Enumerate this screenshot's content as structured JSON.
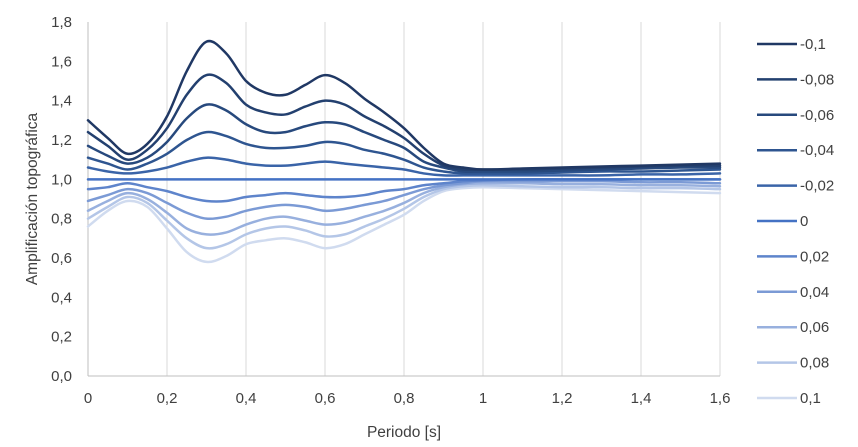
{
  "chart_data": {
    "type": "line",
    "title": "",
    "xlabel": "Periodo [s]",
    "ylabel": "Amplificación topográfica",
    "xlim": [
      0,
      1.6
    ],
    "ylim": [
      0,
      1.8
    ],
    "grid": "vertical",
    "legend_position": "right",
    "x_tick_labels": [
      "0",
      "0,2",
      "0,4",
      "0,6",
      "0,8",
      "1",
      "1,2",
      "1,4",
      "1,6"
    ],
    "y_tick_labels": [
      "0,0",
      "0,2",
      "0,4",
      "0,6",
      "0,8",
      "1,0",
      "1,2",
      "1,4",
      "1,6",
      "1,8"
    ],
    "x": [
      0,
      0.05,
      0.1,
      0.15,
      0.2,
      0.25,
      0.3,
      0.35,
      0.4,
      0.45,
      0.5,
      0.55,
      0.6,
      0.65,
      0.7,
      0.75,
      0.8,
      0.85,
      0.9,
      0.95,
      1.0,
      1.1,
      1.2,
      1.3,
      1.4,
      1.5,
      1.6
    ],
    "series": [
      {
        "name": "-0,1",
        "color": "#203864",
        "values": [
          1.3,
          1.21,
          1.13,
          1.18,
          1.32,
          1.55,
          1.7,
          1.64,
          1.5,
          1.44,
          1.43,
          1.48,
          1.53,
          1.49,
          1.41,
          1.34,
          1.26,
          1.16,
          1.08,
          1.06,
          1.05,
          1.055,
          1.06,
          1.065,
          1.07,
          1.075,
          1.08
        ]
      },
      {
        "name": "-0,08",
        "color": "#23406f",
        "values": [
          1.24,
          1.17,
          1.1,
          1.15,
          1.26,
          1.43,
          1.53,
          1.49,
          1.38,
          1.34,
          1.33,
          1.37,
          1.4,
          1.38,
          1.32,
          1.27,
          1.21,
          1.13,
          1.07,
          1.05,
          1.05,
          1.05,
          1.055,
          1.06,
          1.065,
          1.07,
          1.07
        ]
      },
      {
        "name": "-0,06",
        "color": "#27497d",
        "values": [
          1.17,
          1.12,
          1.08,
          1.11,
          1.19,
          1.31,
          1.38,
          1.35,
          1.28,
          1.24,
          1.24,
          1.27,
          1.29,
          1.28,
          1.24,
          1.2,
          1.16,
          1.09,
          1.06,
          1.04,
          1.04,
          1.04,
          1.045,
          1.05,
          1.055,
          1.06,
          1.06
        ]
      },
      {
        "name": "-0,04",
        "color": "#2e5590",
        "values": [
          1.11,
          1.08,
          1.05,
          1.08,
          1.13,
          1.2,
          1.24,
          1.22,
          1.18,
          1.16,
          1.16,
          1.17,
          1.19,
          1.18,
          1.15,
          1.13,
          1.1,
          1.06,
          1.04,
          1.03,
          1.03,
          1.03,
          1.035,
          1.04,
          1.04,
          1.045,
          1.05
        ]
      },
      {
        "name": "-0,02",
        "color": "#3a64a8",
        "values": [
          1.06,
          1.04,
          1.03,
          1.04,
          1.06,
          1.09,
          1.11,
          1.1,
          1.08,
          1.07,
          1.07,
          1.08,
          1.09,
          1.08,
          1.07,
          1.06,
          1.05,
          1.03,
          1.02,
          1.02,
          1.02,
          1.02,
          1.02,
          1.02,
          1.025,
          1.025,
          1.03
        ]
      },
      {
        "name": "0",
        "color": "#4472c4",
        "values": [
          1.0,
          1.0,
          1.0,
          1.0,
          1.0,
          1.0,
          1.0,
          1.0,
          1.0,
          1.0,
          1.0,
          1.0,
          1.0,
          1.0,
          1.0,
          1.0,
          1.0,
          1.0,
          1.0,
          1.0,
          1.0,
          1.0,
          1.0,
          1.0,
          1.0,
          1.0,
          1.0
        ]
      },
      {
        "name": "0,02",
        "color": "#5e84cb",
        "values": [
          0.95,
          0.96,
          0.98,
          0.96,
          0.94,
          0.91,
          0.89,
          0.89,
          0.91,
          0.92,
          0.93,
          0.92,
          0.91,
          0.91,
          0.92,
          0.94,
          0.95,
          0.97,
          0.98,
          0.99,
          0.995,
          1.0,
          1.0,
          1.0,
          1.0,
          1.0,
          1.0
        ]
      },
      {
        "name": "0,04",
        "color": "#7b9ad5",
        "values": [
          0.89,
          0.92,
          0.95,
          0.93,
          0.88,
          0.83,
          0.8,
          0.81,
          0.84,
          0.86,
          0.87,
          0.86,
          0.84,
          0.85,
          0.87,
          0.89,
          0.92,
          0.95,
          0.97,
          0.98,
          0.99,
          0.99,
          0.99,
          0.99,
          0.985,
          0.985,
          0.98
        ]
      },
      {
        "name": "0,06",
        "color": "#98b0de",
        "values": [
          0.84,
          0.89,
          0.93,
          0.9,
          0.83,
          0.75,
          0.72,
          0.73,
          0.77,
          0.8,
          0.81,
          0.79,
          0.77,
          0.78,
          0.81,
          0.84,
          0.88,
          0.93,
          0.96,
          0.975,
          0.98,
          0.98,
          0.975,
          0.975,
          0.97,
          0.97,
          0.965
        ]
      },
      {
        "name": "0,08",
        "color": "#b4c6e7",
        "values": [
          0.8,
          0.86,
          0.91,
          0.88,
          0.79,
          0.7,
          0.65,
          0.67,
          0.72,
          0.75,
          0.76,
          0.74,
          0.71,
          0.72,
          0.76,
          0.8,
          0.85,
          0.91,
          0.95,
          0.965,
          0.97,
          0.965,
          0.96,
          0.96,
          0.955,
          0.955,
          0.95
        ]
      },
      {
        "name": "0,1",
        "color": "#d0dbef",
        "values": [
          0.76,
          0.84,
          0.89,
          0.86,
          0.75,
          0.63,
          0.58,
          0.61,
          0.67,
          0.69,
          0.7,
          0.68,
          0.65,
          0.67,
          0.72,
          0.77,
          0.82,
          0.89,
          0.94,
          0.955,
          0.96,
          0.955,
          0.95,
          0.945,
          0.94,
          0.935,
          0.93
        ]
      }
    ]
  }
}
